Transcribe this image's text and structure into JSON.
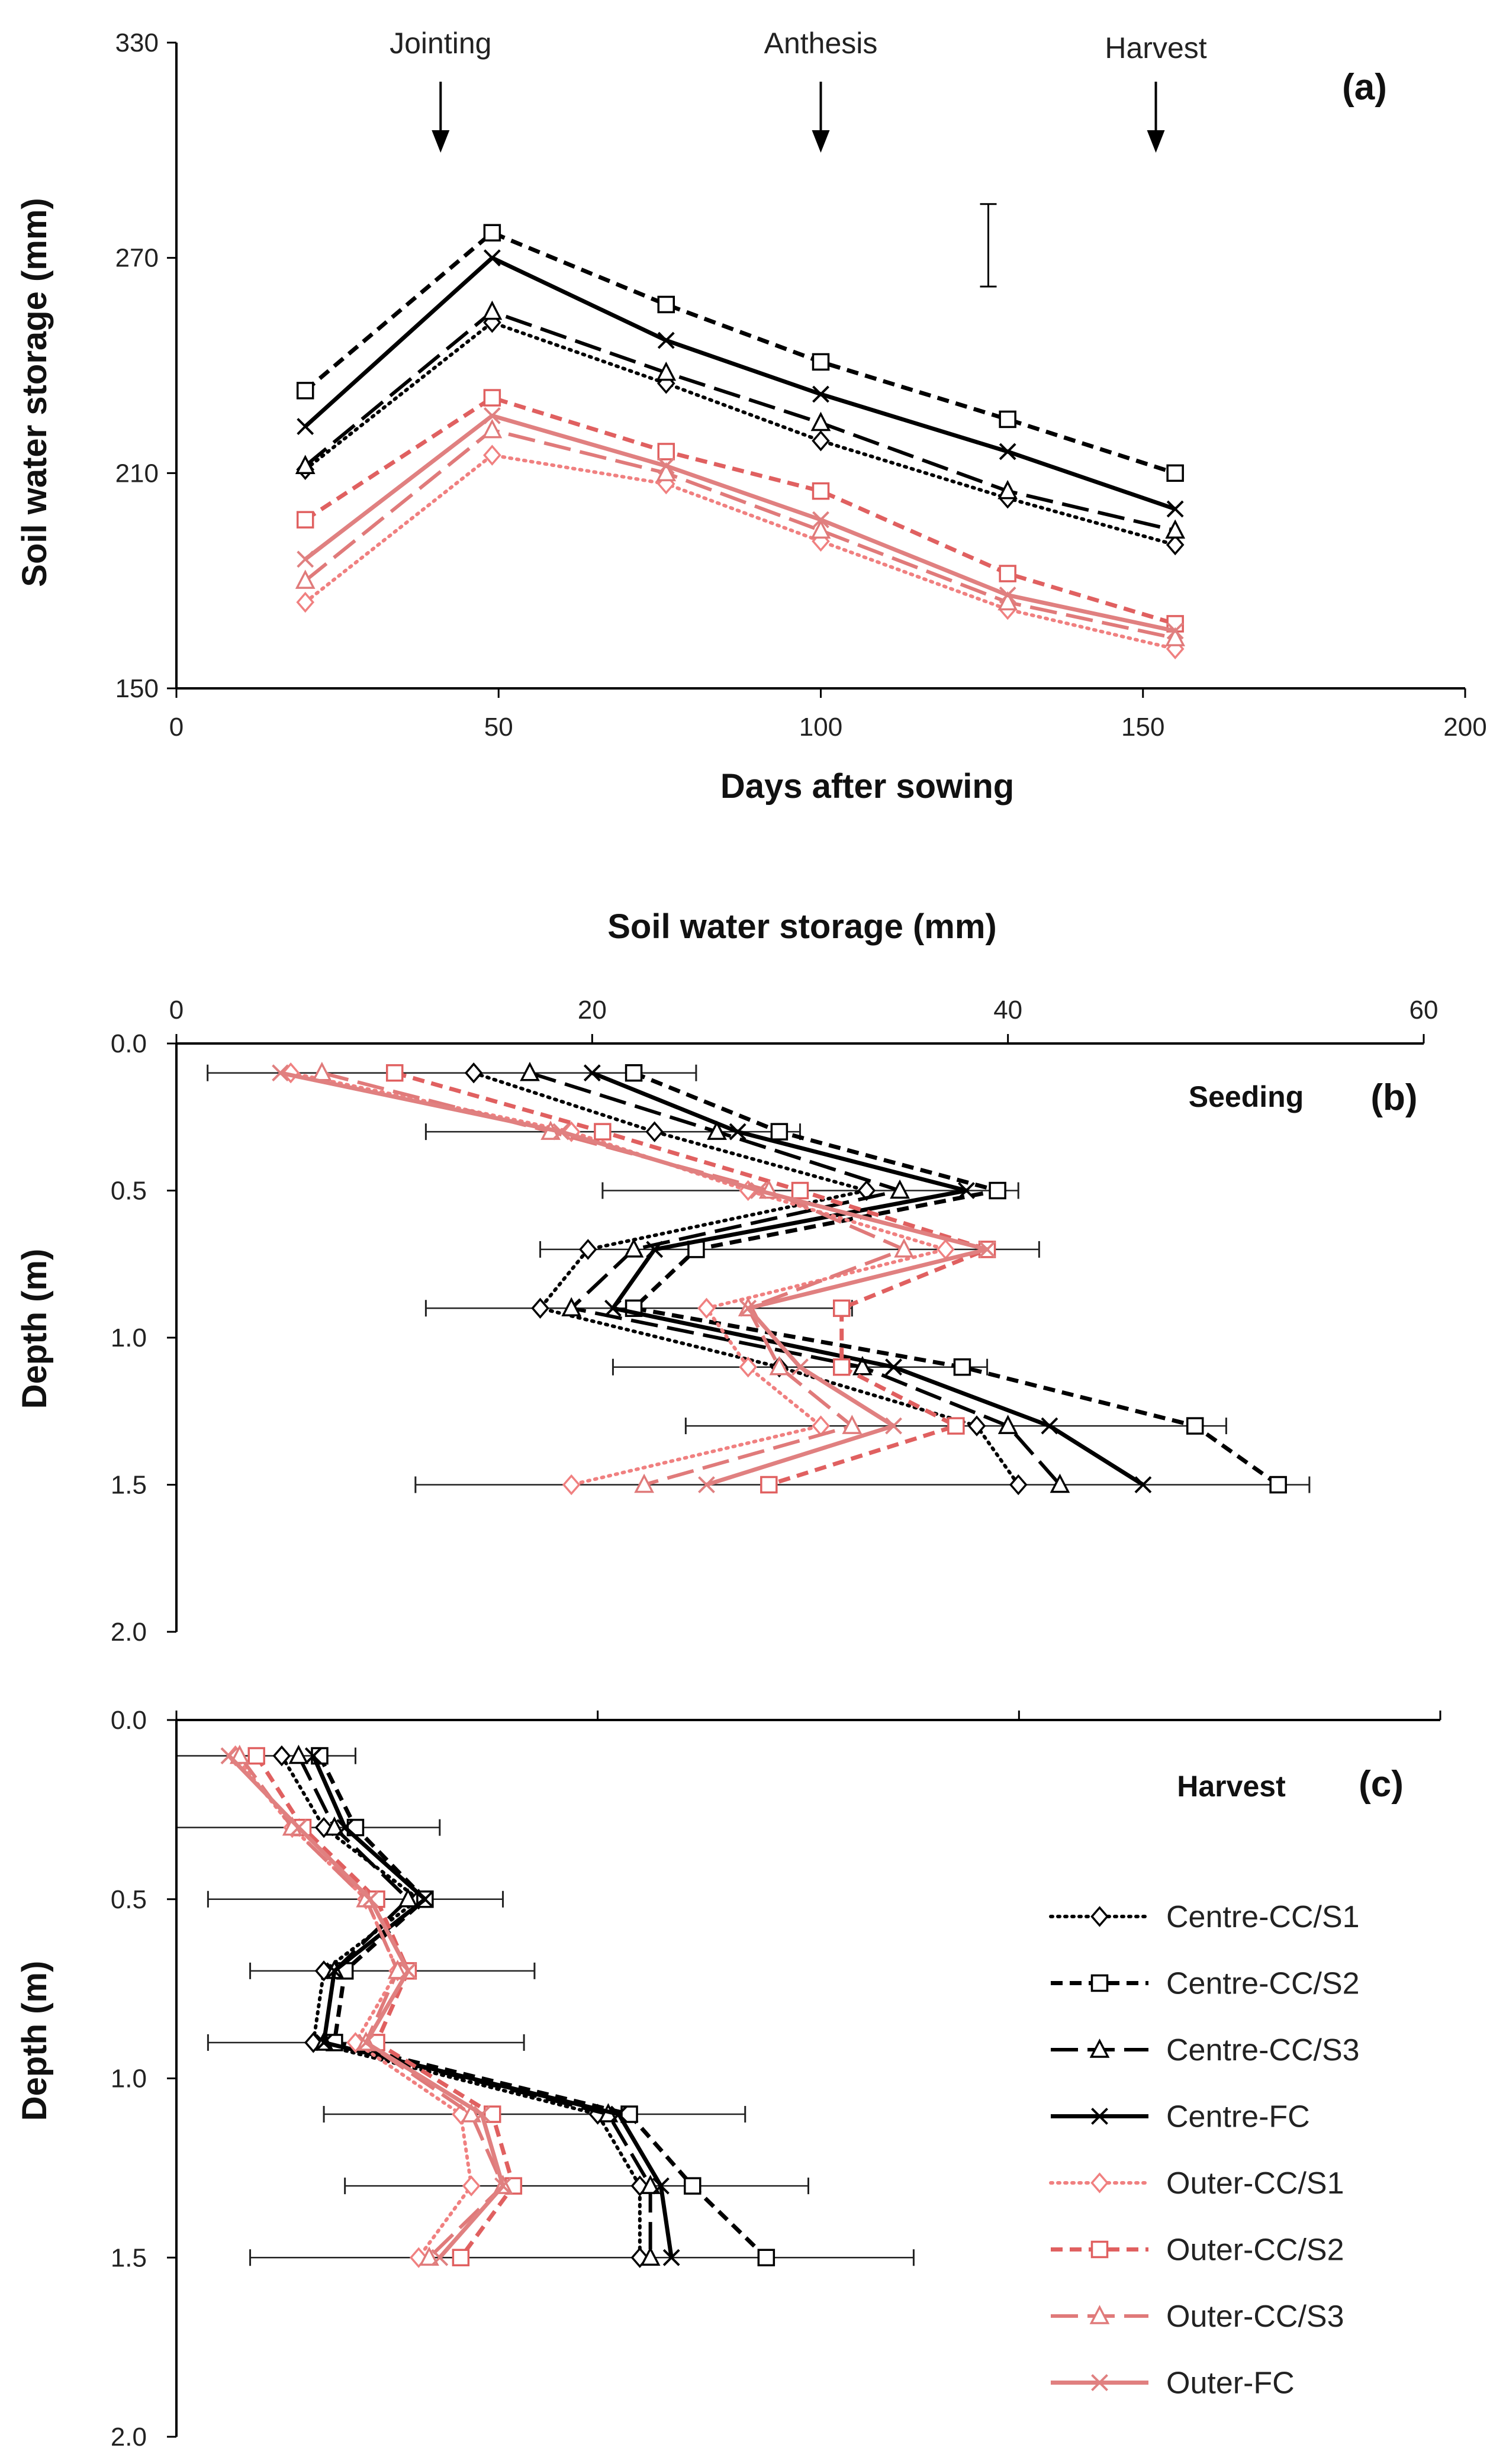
{
  "figure": {
    "background": "#ffffff"
  },
  "series_styles": [
    {
      "name": "Centre-CC/S1",
      "color": "#000000",
      "dash": "3 9",
      "marker": "diamond",
      "width": 6,
      "cap": "round"
    },
    {
      "name": "Centre-CC/S2",
      "color": "#000000",
      "dash": "20 12",
      "marker": "square",
      "width": 7,
      "cap": "butt"
    },
    {
      "name": "Centre-CC/S3",
      "color": "#000000",
      "dash": "46 16",
      "marker": "triangle",
      "width": 6,
      "cap": "butt"
    },
    {
      "name": "Centre-FC",
      "color": "#000000",
      "dash": "",
      "marker": "x",
      "width": 7,
      "cap": "butt"
    },
    {
      "name": "Outer-CC/S1",
      "color": "#f08080",
      "dash": "3 9",
      "marker": "diamond",
      "width": 6,
      "cap": "round"
    },
    {
      "name": "Outer-CC/S2",
      "color": "#e06060",
      "dash": "20 12",
      "marker": "square",
      "width": 7,
      "cap": "butt"
    },
    {
      "name": "Outer-CC/S3",
      "color": "#e07a7a",
      "dash": "46 16",
      "marker": "triangle",
      "width": 6,
      "cap": "butt"
    },
    {
      "name": "Outer-FC",
      "color": "#e08080",
      "dash": "",
      "marker": "x",
      "width": 7,
      "cap": "butt"
    }
  ],
  "legend": {
    "placement": "bottom-right of panel (c)",
    "entries": [
      "Centre-CC/S1",
      "Centre-CC/S2",
      "Centre-CC/S3",
      "Centre-FC",
      "Outer-CC/S1",
      "Outer-CC/S2",
      "Outer-CC/S3",
      "Outer-FC"
    ]
  },
  "chart_data": [
    {
      "type": "line",
      "panel_label": "(a)",
      "xlabel": "Days after sowing",
      "ylabel": "Soil water storage (mm)",
      "xlim": [
        0,
        200
      ],
      "ylim": [
        150,
        330
      ],
      "xticks": [
        "0",
        "50",
        "100",
        "150",
        "200"
      ],
      "yticks": [
        "150",
        "210",
        "270",
        "330"
      ],
      "x": [
        20,
        49,
        76,
        100,
        129,
        155
      ],
      "annotations": [
        {
          "text": "Jointing",
          "x": 41
        },
        {
          "text": "Anthesis",
          "x": 100
        },
        {
          "text": "Harvest",
          "x": 152
        }
      ],
      "error_bar": {
        "x": 126,
        "low": 262,
        "high": 285
      },
      "series": [
        {
          "name": "Centre-CC/S1",
          "values": [
            211,
            252,
            235,
            219,
            203,
            190
          ]
        },
        {
          "name": "Centre-CC/S2",
          "values": [
            233,
            277,
            257,
            241,
            225,
            210
          ]
        },
        {
          "name": "Centre-CC/S3",
          "values": [
            212,
            255,
            238,
            224,
            205,
            194
          ]
        },
        {
          "name": "Centre-FC",
          "values": [
            223,
            270,
            247,
            232,
            216,
            200
          ]
        },
        {
          "name": "Outer-CC/S1",
          "values": [
            174,
            215,
            207,
            191,
            172,
            161
          ]
        },
        {
          "name": "Outer-CC/S2",
          "values": [
            197,
            231,
            216,
            205,
            182,
            168
          ]
        },
        {
          "name": "Outer-CC/S3",
          "values": [
            180,
            222,
            210,
            194,
            174,
            164
          ]
        },
        {
          "name": "Outer-FC",
          "values": [
            186,
            226,
            212,
            197,
            176,
            166
          ]
        }
      ]
    },
    {
      "type": "line",
      "panel_label": "(b)",
      "stage_label": "Seeding",
      "xlabel": "Soil water storage (mm)",
      "ylabel": "Depth (m)",
      "xlim": [
        0,
        60
      ],
      "ylim": [
        0,
        2
      ],
      "xticks": [
        "0",
        "20",
        "40",
        "60"
      ],
      "yticks": [
        "0.0",
        "0.5",
        "1.0",
        "1.5",
        "2.0"
      ],
      "depths": [
        0.1,
        0.3,
        0.5,
        0.7,
        0.9,
        1.1,
        1.3,
        1.5
      ],
      "series": [
        {
          "name": "Centre-CC/S1",
          "values": [
            14.3,
            23.0,
            33.2,
            19.8,
            17.5,
            29.0,
            38.5,
            40.5
          ]
        },
        {
          "name": "Centre-CC/S2",
          "values": [
            22.0,
            29.0,
            39.5,
            25.0,
            22.0,
            37.8,
            49.0,
            53.0
          ]
        },
        {
          "name": "Centre-CC/S3",
          "values": [
            17.0,
            26.0,
            34.8,
            22.0,
            19.0,
            33.0,
            40.0,
            42.5
          ]
        },
        {
          "name": "Centre-FC",
          "values": [
            20.0,
            27.0,
            38.0,
            23.0,
            21.0,
            34.5,
            42.0,
            46.5
          ]
        },
        {
          "name": "Outer-CC/S1",
          "values": [
            5.5,
            19.0,
            27.5,
            37.0,
            25.5,
            27.5,
            31.0,
            19.0
          ]
        },
        {
          "name": "Outer-CC/S2",
          "values": [
            10.5,
            20.5,
            30.0,
            39.0,
            32.0,
            32.0,
            37.5,
            28.5
          ]
        },
        {
          "name": "Outer-CC/S3",
          "values": [
            7.0,
            18.0,
            28.5,
            35.0,
            27.5,
            29.0,
            32.5,
            22.5
          ]
        },
        {
          "name": "Outer-FC",
          "values": [
            5.0,
            18.5,
            28.0,
            39.0,
            27.5,
            30.0,
            34.5,
            25.5
          ]
        }
      ],
      "error_bars": [
        [
          0,
          0.1,
          1.5,
          25.0
        ],
        [
          0,
          0.3,
          12.0,
          30.0
        ],
        [
          0,
          0.5,
          20.5,
          40.5
        ],
        [
          0,
          0.7,
          17.5,
          41.5
        ],
        [
          0,
          0.9,
          12.0,
          32.5
        ],
        [
          0,
          1.1,
          21.0,
          39.0
        ],
        [
          0,
          1.3,
          24.5,
          50.5
        ],
        [
          0,
          1.5,
          11.5,
          54.5
        ]
      ]
    },
    {
      "type": "line",
      "panel_label": "(c)",
      "stage_label": "Harvest",
      "xlabel": "",
      "ylabel": "Depth (m)",
      "xlim": [
        0,
        60
      ],
      "ylim": [
        0,
        2
      ],
      "xticks": [],
      "yticks": [
        "0.0",
        "0.5",
        "1.0",
        "1.5",
        "2.0"
      ],
      "depths": [
        0.1,
        0.3,
        0.5,
        0.7,
        0.9,
        1.1,
        1.3,
        1.5
      ],
      "series": [
        {
          "name": "Centre-CC/S1",
          "values": [
            5.0,
            7.0,
            11.5,
            7.0,
            6.5,
            20.0,
            22.0,
            22.0
          ]
        },
        {
          "name": "Centre-CC/S2",
          "values": [
            6.8,
            8.5,
            11.8,
            8.0,
            7.5,
            21.5,
            24.5,
            28.0
          ]
        },
        {
          "name": "Centre-CC/S3",
          "values": [
            5.8,
            7.5,
            11.0,
            7.5,
            7.0,
            20.5,
            22.5,
            22.5
          ]
        },
        {
          "name": "Centre-FC",
          "values": [
            6.5,
            8.0,
            11.8,
            7.5,
            7.0,
            21.0,
            23.0,
            23.5
          ]
        },
        {
          "name": "Outer-CC/S1",
          "values": [
            2.8,
            5.5,
            9.0,
            10.5,
            8.5,
            13.5,
            14.0,
            11.5
          ]
        },
        {
          "name": "Outer-CC/S2",
          "values": [
            3.8,
            6.0,
            9.5,
            11.0,
            9.5,
            15.0,
            16.0,
            13.5
          ]
        },
        {
          "name": "Outer-CC/S3",
          "values": [
            3.0,
            5.5,
            9.0,
            10.5,
            9.0,
            14.0,
            15.5,
            12.0
          ]
        },
        {
          "name": "Outer-FC",
          "values": [
            2.5,
            5.8,
            9.2,
            11.0,
            9.0,
            14.5,
            15.5,
            12.5
          ]
        }
      ],
      "error_bars": [
        [
          0,
          0.1,
          0.0,
          8.5
        ],
        [
          0,
          0.3,
          0.0,
          12.5
        ],
        [
          0,
          0.5,
          1.5,
          15.5
        ],
        [
          0,
          0.7,
          3.5,
          17.0
        ],
        [
          0,
          0.9,
          1.5,
          16.5
        ],
        [
          0,
          1.1,
          7.0,
          27.0
        ],
        [
          0,
          1.3,
          8.0,
          30.0
        ],
        [
          0,
          1.5,
          3.5,
          35.0
        ]
      ]
    }
  ]
}
